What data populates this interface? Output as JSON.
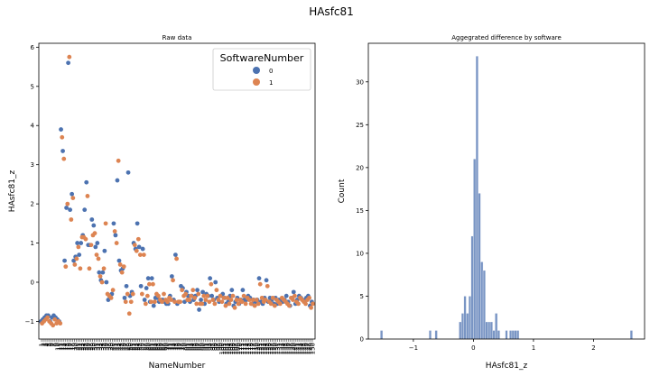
{
  "figure": {
    "suptitle": "HAsfc81"
  },
  "colors": {
    "sw0": "#4c72b0",
    "sw1": "#dd8452",
    "hist": "#4c72b0",
    "axis": "#000000"
  },
  "chart_data": [
    {
      "type": "scatter",
      "title": "Raw data",
      "xlabel": "NameNumber",
      "ylabel": "HAsfc81_z",
      "ylim": [
        -1.45,
        6.1
      ],
      "yticks": [
        -1,
        0,
        1,
        2,
        3,
        4,
        5,
        6
      ],
      "legend": {
        "title": "SoftwareNumber",
        "entries": [
          "0",
          "1"
        ],
        "placement": "top-right"
      },
      "x": [
        1,
        2,
        3,
        4,
        5,
        6,
        7,
        8,
        9,
        10,
        11,
        12,
        13,
        14,
        15,
        16,
        17,
        18,
        19,
        20,
        21,
        22,
        23,
        24,
        25,
        26,
        27,
        28,
        29,
        30,
        31,
        32,
        33,
        34,
        35,
        36,
        37,
        38,
        39,
        40,
        41,
        42,
        43,
        44,
        45,
        46,
        47,
        48,
        49,
        50,
        51,
        52,
        53,
        54,
        55,
        56,
        57,
        58,
        59,
        60,
        61,
        62,
        63,
        64,
        65,
        66,
        67,
        68,
        69,
        70,
        71,
        72,
        73,
        74,
        75,
        76,
        77,
        78,
        79,
        80,
        81,
        82,
        83,
        84,
        85,
        86,
        87,
        88,
        89,
        90,
        91,
        92,
        93,
        94,
        95,
        96,
        97,
        98,
        99,
        100,
        101,
        102,
        103,
        104,
        105,
        106,
        107,
        108,
        109,
        110,
        111,
        112,
        113,
        114,
        115,
        116,
        117,
        118,
        119,
        120,
        121,
        122,
        123,
        124,
        125,
        126,
        127,
        128,
        129,
        130,
        131,
        132,
        133,
        134,
        135,
        136,
        137,
        138,
        139,
        140,
        141,
        142,
        143,
        144,
        145,
        146,
        147,
        148,
        149,
        150
      ],
      "series": [
        {
          "name": "0",
          "values": [
            -1.0,
            -0.95,
            -0.9,
            -0.85,
            -0.85,
            -1.0,
            -0.9,
            -0.85,
            -0.9,
            -0.95,
            -1.0,
            3.9,
            3.35,
            0.55,
            1.9,
            5.6,
            1.85,
            2.25,
            0.55,
            0.65,
            1.0,
            0.7,
            1.0,
            1.2,
            1.85,
            2.55,
            0.95,
            0.95,
            1.6,
            1.45,
            0.9,
            1.0,
            0.25,
            0.05,
            0.25,
            0.8,
            0.0,
            -0.45,
            -0.35,
            -0.3,
            1.5,
            1.2,
            2.6,
            0.55,
            0.3,
            0.35,
            -0.4,
            -0.1,
            2.8,
            -0.35,
            -0.25,
            1.0,
            0.85,
            1.5,
            0.9,
            -0.1,
            0.85,
            -0.45,
            -0.15,
            0.1,
            -0.5,
            0.1,
            -0.6,
            -0.4,
            -0.4,
            -0.5,
            -0.45,
            -0.45,
            -0.5,
            -0.55,
            -0.55,
            -0.35,
            0.15,
            -0.45,
            0.7,
            -0.55,
            -0.5,
            -0.1,
            -0.15,
            -0.5,
            -0.25,
            -0.35,
            -0.5,
            -0.35,
            -0.45,
            -0.35,
            -0.2,
            -0.7,
            -0.45,
            -0.25,
            -0.55,
            -0.3,
            -0.35,
            0.1,
            -0.35,
            -0.45,
            0.0,
            -0.4,
            -0.5,
            -0.35,
            -0.3,
            -0.4,
            -0.55,
            -0.5,
            -0.35,
            -0.2,
            -0.6,
            -0.5,
            -0.4,
            -0.55,
            -0.45,
            -0.2,
            -0.45,
            -0.45,
            -0.35,
            -0.4,
            -0.55,
            -0.45,
            -0.5,
            -0.45,
            0.1,
            -0.5,
            -0.55,
            -0.4,
            0.05,
            -0.5,
            -0.4,
            -0.45,
            -0.55,
            -0.4,
            -0.55,
            -0.45,
            -0.45,
            -0.5,
            -0.45,
            -0.35,
            -0.5,
            -0.6,
            -0.4,
            -0.25,
            -0.55,
            -0.45,
            -0.35,
            -0.4,
            -0.45,
            -0.5,
            -0.4,
            -0.35,
            -0.6,
            -0.5
          ]
        },
        {
          "name": "1",
          "values": [
            -1.05,
            -1.0,
            -0.95,
            -0.9,
            -1.0,
            -1.05,
            -1.1,
            -0.95,
            -1.05,
            -1.0,
            -1.05,
            3.7,
            3.15,
            0.4,
            2.0,
            5.75,
            1.6,
            2.15,
            0.45,
            0.6,
            0.9,
            0.35,
            1.15,
            1.15,
            1.1,
            2.2,
            0.35,
            0.95,
            1.2,
            1.25,
            0.7,
            0.6,
            0.15,
            0.0,
            0.35,
            1.5,
            -0.3,
            -0.35,
            -0.4,
            -0.2,
            1.3,
            1.0,
            3.1,
            0.45,
            0.25,
            0.4,
            -0.5,
            -0.3,
            -0.8,
            -0.5,
            -0.3,
            0.95,
            0.8,
            1.1,
            0.7,
            -0.3,
            0.7,
            -0.55,
            -0.35,
            -0.05,
            -0.5,
            -0.05,
            -0.5,
            -0.3,
            -0.35,
            -0.45,
            -0.5,
            -0.3,
            -0.45,
            -0.5,
            -0.4,
            -0.45,
            0.05,
            -0.5,
            0.6,
            -0.5,
            -0.5,
            -0.2,
            -0.35,
            -0.3,
            -0.45,
            -0.45,
            -0.35,
            -0.2,
            -0.4,
            -0.55,
            -0.3,
            -0.55,
            -0.55,
            -0.35,
            -0.45,
            -0.35,
            -0.5,
            -0.05,
            -0.45,
            -0.55,
            -0.2,
            -0.45,
            -0.35,
            -0.5,
            -0.4,
            -0.6,
            -0.4,
            -0.55,
            -0.45,
            -0.35,
            -0.65,
            -0.45,
            -0.55,
            -0.45,
            -0.5,
            -0.35,
            -0.55,
            -0.4,
            -0.45,
            -0.55,
            -0.45,
            -0.6,
            -0.45,
            -0.55,
            -0.05,
            -0.4,
            -0.5,
            -0.45,
            -0.1,
            -0.5,
            -0.55,
            -0.4,
            -0.6,
            -0.45,
            -0.5,
            -0.55,
            -0.4,
            -0.45,
            -0.5,
            -0.55,
            -0.6,
            -0.4,
            -0.45,
            -0.35,
            -0.5,
            -0.55,
            -0.4,
            -0.45,
            -0.5,
            -0.55,
            -0.45,
            -0.4,
            -0.65,
            -0.55
          ]
        }
      ]
    },
    {
      "type": "bar",
      "title": "Aggegrated difference by software",
      "xlabel": "HAsfc81_z",
      "ylabel": "Count",
      "xlim": [
        -1.75,
        2.85
      ],
      "ylim": [
        0,
        34.5
      ],
      "xticks": [
        -1,
        0,
        1,
        2
      ],
      "yticks": [
        0,
        5,
        10,
        15,
        20,
        25,
        30
      ],
      "bin_width": 0.04,
      "bins": [
        {
          "x": -1.53,
          "count": 1
        },
        {
          "x": -0.72,
          "count": 1
        },
        {
          "x": -0.62,
          "count": 1
        },
        {
          "x": -0.22,
          "count": 2
        },
        {
          "x": -0.18,
          "count": 3
        },
        {
          "x": -0.14,
          "count": 5
        },
        {
          "x": -0.1,
          "count": 3
        },
        {
          "x": -0.06,
          "count": 5
        },
        {
          "x": -0.02,
          "count": 12
        },
        {
          "x": 0.02,
          "count": 21
        },
        {
          "x": 0.06,
          "count": 33
        },
        {
          "x": 0.1,
          "count": 17
        },
        {
          "x": 0.14,
          "count": 9
        },
        {
          "x": 0.18,
          "count": 8
        },
        {
          "x": 0.22,
          "count": 2
        },
        {
          "x": 0.26,
          "count": 2
        },
        {
          "x": 0.3,
          "count": 2
        },
        {
          "x": 0.34,
          "count": 1
        },
        {
          "x": 0.38,
          "count": 3
        },
        {
          "x": 0.42,
          "count": 1
        },
        {
          "x": 0.55,
          "count": 1
        },
        {
          "x": 0.62,
          "count": 1
        },
        {
          "x": 0.66,
          "count": 1
        },
        {
          "x": 0.7,
          "count": 1
        },
        {
          "x": 0.74,
          "count": 1
        },
        {
          "x": 2.63,
          "count": 1
        }
      ]
    }
  ]
}
